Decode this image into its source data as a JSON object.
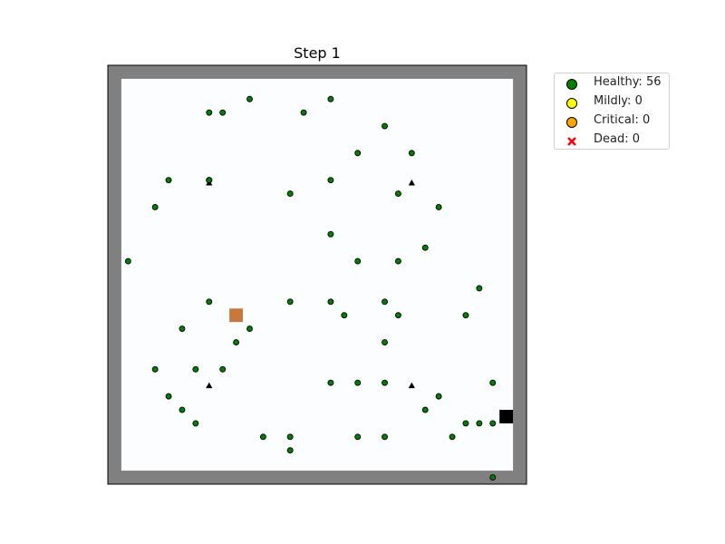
{
  "chart_data": {
    "type": "scatter",
    "title": "Step 1",
    "xlim": [
      0,
      30
    ],
    "ylim": [
      0,
      30
    ],
    "grid": false,
    "legend_placement": "outside-top-right",
    "colors": {
      "healthy": "#008000",
      "mildly": "#ffff00",
      "critical": "#ffa500",
      "dead": "#ff0000",
      "wall": "#808080",
      "floor": "#fcfdff",
      "exit": "#000000",
      "hazard": "#c8783f"
    },
    "legend": [
      {
        "key": "healthy",
        "label": "Healthy: 56"
      },
      {
        "key": "mildly",
        "label": "Mildly: 0"
      },
      {
        "key": "critical",
        "label": "Critical: 0"
      },
      {
        "key": "dead",
        "label": "Dead: 0"
      }
    ],
    "series": [
      {
        "key": "healthy",
        "marker": "circle",
        "points": [
          [
            10,
            28
          ],
          [
            16,
            28
          ],
          [
            7,
            27
          ],
          [
            8,
            27
          ],
          [
            14,
            27
          ],
          [
            20,
            26
          ],
          [
            18,
            24
          ],
          [
            22,
            24
          ],
          [
            4,
            22
          ],
          [
            7,
            22
          ],
          [
            16,
            22
          ],
          [
            13,
            21
          ],
          [
            21,
            21
          ],
          [
            3,
            20
          ],
          [
            24,
            20
          ],
          [
            16,
            18
          ],
          [
            23,
            17
          ],
          [
            1,
            16
          ],
          [
            18,
            16
          ],
          [
            21,
            16
          ],
          [
            27,
            14
          ],
          [
            7,
            13
          ],
          [
            13,
            13
          ],
          [
            16,
            13
          ],
          [
            20,
            13
          ],
          [
            17,
            12
          ],
          [
            21,
            12
          ],
          [
            26,
            12
          ],
          [
            5,
            11
          ],
          [
            10,
            11
          ],
          [
            20,
            10
          ],
          [
            9,
            10
          ],
          [
            3,
            8
          ],
          [
            6,
            8
          ],
          [
            8,
            8
          ],
          [
            16,
            7
          ],
          [
            18,
            7
          ],
          [
            20,
            7
          ],
          [
            28,
            7
          ],
          [
            4,
            6
          ],
          [
            24,
            6
          ],
          [
            23,
            5
          ],
          [
            5,
            5
          ],
          [
            26,
            4
          ],
          [
            27,
            4
          ],
          [
            28,
            4
          ],
          [
            6,
            4
          ],
          [
            11,
            3
          ],
          [
            13,
            3
          ],
          [
            18,
            3
          ],
          [
            20,
            3
          ],
          [
            25,
            3
          ],
          [
            13,
            2
          ],
          [
            28,
            0
          ],
          [
            7,
            22
          ],
          [
            7,
            22
          ]
        ]
      }
    ],
    "obstacles": [
      [
        7,
        21.8
      ],
      [
        22,
        21.8
      ],
      [
        7,
        6.8
      ],
      [
        22,
        6.8
      ]
    ],
    "hazard": [
      9,
      12
    ],
    "exit": [
      29,
      4.5
    ]
  }
}
